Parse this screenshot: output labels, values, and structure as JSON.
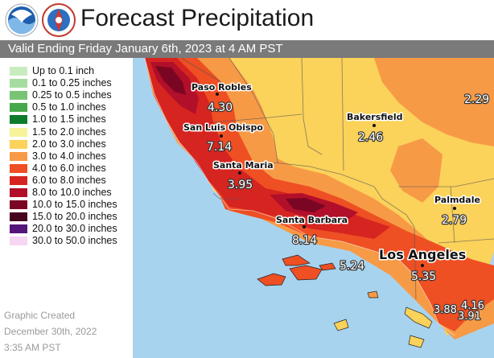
{
  "header": {
    "title": "Forecast Precipitation",
    "subtitle": "Valid Ending Friday January 6th, 2023 at 4 AM PST",
    "logos": [
      "noaa-logo",
      "national-weather-service-logo"
    ]
  },
  "legend": {
    "items": [
      {
        "label": "Up to 0.1 inch",
        "color": "#c8ebc0"
      },
      {
        "label": "0.1 to 0.25 inches",
        "color": "#a6dca0"
      },
      {
        "label": "0.25 to 0.5 inches",
        "color": "#79c474"
      },
      {
        "label": "0.5 to 1.0 inches",
        "color": "#45a84a"
      },
      {
        "label": "1.0 to 1.5 inches",
        "color": "#0e7a2c"
      },
      {
        "label": "1.5 to 2.0 inches",
        "color": "#f6f39a"
      },
      {
        "label": "2.0 to 3.0 inches",
        "color": "#fbd25a"
      },
      {
        "label": "3.0 to 4.0 inches",
        "color": "#f79a46"
      },
      {
        "label": "4.0 to 6.0 inches",
        "color": "#ee4f23"
      },
      {
        "label": "6.0 to 8.0 inches",
        "color": "#d62420"
      },
      {
        "label": "8.0 to 10.0 inches",
        "color": "#b10f2a"
      },
      {
        "label": "10.0 to 15.0 inches",
        "color": "#7b0623"
      },
      {
        "label": "15.0 to 20.0 inches",
        "color": "#45051f"
      },
      {
        "label": "20.0 to 30.0 inches",
        "color": "#55157a"
      },
      {
        "label": "30.0 to 50.0 inches",
        "color": "#f6d6f2"
      }
    ]
  },
  "credit": {
    "line1": "Graphic Created",
    "line2": "December 30th, 2022",
    "line3": "3:35 AM PST"
  },
  "map": {
    "ocean_color": "#a8d3ef",
    "cities": [
      {
        "name": "Paso Robles",
        "value": "4.30"
      },
      {
        "name": "San Luis Obispo",
        "value": "7.14"
      },
      {
        "name": "Santa Maria",
        "value": "3.95"
      },
      {
        "name": "Santa Barbara",
        "value": "8.14"
      },
      {
        "name": "Bakersfield",
        "value": "2.46"
      },
      {
        "name": "Palmdale",
        "value": "2.79"
      },
      {
        "name": "Los Angeles",
        "value": "5.35"
      }
    ],
    "extra_values": [
      "2.29",
      "5.24",
      "3.88",
      "4.16",
      "3.91"
    ]
  }
}
